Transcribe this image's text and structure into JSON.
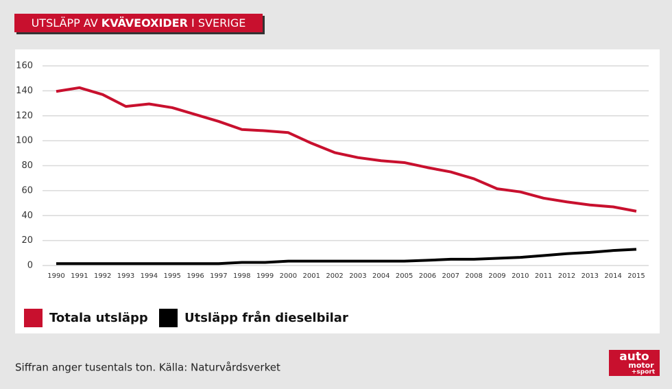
{
  "chart_data": {
    "type": "line",
    "title_parts": [
      "UTSLÄPP AV",
      "KVÄVEOXIDER",
      "I SVERIGE"
    ],
    "categories": [
      "1990",
      "1991",
      "1992",
      "1993",
      "1994",
      "1995",
      "1996",
      "1997",
      "1998",
      "1999",
      "2000",
      "2001",
      "2002",
      "2003",
      "2004",
      "2005",
      "2006",
      "2007",
      "2008",
      "2009",
      "2010",
      "2011",
      "2012",
      "2013",
      "2014",
      "2015"
    ],
    "series": [
      {
        "name": "Totala utsläpp",
        "color": "#c8102e",
        "values": [
          139.5,
          142.5,
          137,
          127.5,
          129.5,
          126.5,
          121,
          115.5,
          109,
          108,
          106.5,
          98,
          90.5,
          86.5,
          84,
          82.5,
          78.5,
          75,
          69.5,
          61.5,
          59,
          54,
          51,
          48.5,
          47,
          43.5
        ]
      },
      {
        "name": "Utsläpp från dieselbilar",
        "color": "#000000",
        "values": [
          1.5,
          1.5,
          1.5,
          1.5,
          1.5,
          1.5,
          1.5,
          1.5,
          2.5,
          2.5,
          3.5,
          3.5,
          3.5,
          3.5,
          3.5,
          3.5,
          4.2,
          5,
          5,
          5.8,
          6.5,
          8,
          9.5,
          10.5,
          12,
          13
        ]
      }
    ],
    "ylim": [
      0,
      160
    ],
    "yticks": [
      0,
      20,
      40,
      60,
      80,
      100,
      120,
      140,
      160
    ],
    "grid": true,
    "footnote": "Siffran anger tusentals ton. Källa: Naturvårdsverket",
    "logo": [
      "auto",
      "motor",
      "+sport"
    ]
  }
}
